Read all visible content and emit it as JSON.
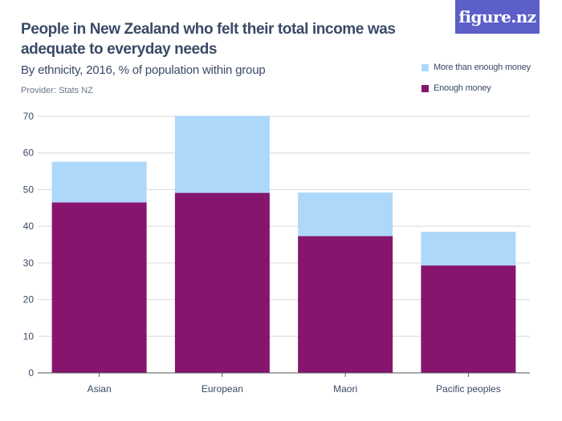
{
  "header": {
    "title": "People in New Zealand who felt their total income was adequate to everyday needs",
    "subtitle": "By ethnicity, 2016, % of population within group",
    "provider": "Provider: Stats NZ",
    "logo": "figure.nz"
  },
  "colors": {
    "more_than_enough": "#aed8fa",
    "enough": "#86166d",
    "logo_bg": "#5b5fc7",
    "grid": "#d9d9d9",
    "text": "#3a4a66"
  },
  "chart_data": {
    "type": "bar",
    "stacked": true,
    "categories": [
      "Asian",
      "European",
      "Maori",
      "Pacific peoples"
    ],
    "series": [
      {
        "name": "Enough money",
        "values": [
          46.5,
          49.1,
          37.3,
          29.3
        ]
      },
      {
        "name": "More than enough money",
        "values": [
          11.1,
          21.0,
          11.9,
          9.2
        ]
      }
    ],
    "ylim": [
      0,
      70
    ],
    "yticks": [
      0,
      10,
      20,
      30,
      40,
      50,
      60,
      70
    ],
    "grid": true,
    "legend": {
      "position": "top-right",
      "entries": [
        "More than enough money",
        "Enough money"
      ]
    }
  }
}
